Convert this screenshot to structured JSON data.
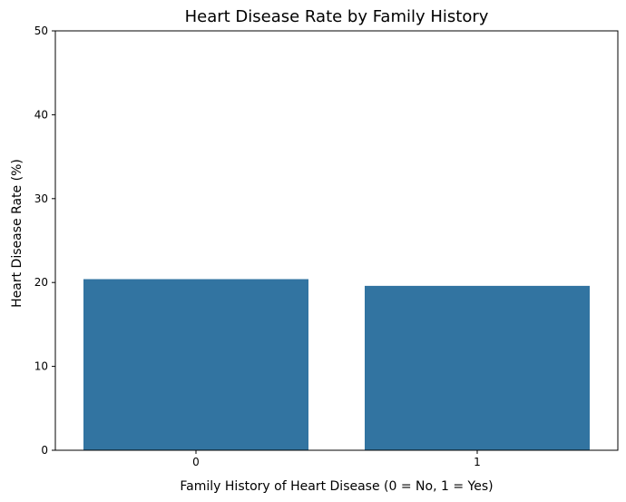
{
  "chart_data": {
    "type": "bar",
    "title": "Heart Disease Rate by Family History",
    "xlabel": "Family History of Heart Disease (0 = No, 1 = Yes)",
    "ylabel": "Heart Disease Rate (%)",
    "categories": [
      "0",
      "1"
    ],
    "values": [
      20.4,
      19.6
    ],
    "ylim": [
      0,
      50
    ],
    "yticks": [
      "0",
      "10",
      "20",
      "30",
      "40",
      "50"
    ],
    "grid": false,
    "bar_color": "#3274a1"
  }
}
